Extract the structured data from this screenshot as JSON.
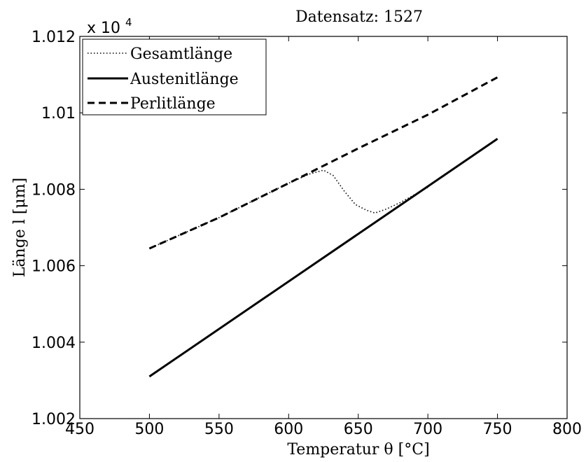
{
  "chart_data": {
    "type": "line",
    "title": "Datensatz: 1527",
    "xlabel": "Temperatur θ [°C]",
    "ylabel": "Länge l [μm]",
    "y_multiplier": "x 10",
    "y_multiplier_exponent": "4",
    "xlim": [
      450,
      800
    ],
    "ylim": [
      1.002,
      1.012
    ],
    "x_ticks": [
      450,
      500,
      550,
      600,
      650,
      700,
      750,
      800
    ],
    "y_ticks": [
      1.002,
      1.004,
      1.006,
      1.008,
      1.01,
      1.012
    ],
    "x_tick_labels": [
      "450",
      "500",
      "550",
      "600",
      "650",
      "700",
      "750",
      "800"
    ],
    "y_tick_labels": [
      "1.002",
      "1.004",
      "1.006",
      "1.008",
      "1.01",
      "1.012"
    ],
    "grid": false,
    "legend_position": "top-left",
    "series": [
      {
        "name": "Gesamtlänge",
        "style": "dotted",
        "color": "#000000",
        "x": [
          500,
          550,
          600,
          615,
          625,
          632,
          640,
          648,
          656,
          662,
          670,
          680,
          690,
          700
        ],
        "y": [
          1.00645,
          1.00726,
          1.00816,
          1.0084,
          1.0085,
          1.00836,
          1.00795,
          1.0076,
          1.00745,
          1.00738,
          1.00748,
          1.00765,
          1.00785,
          1.00805
        ]
      },
      {
        "name": "Austenitlänge",
        "style": "solid",
        "color": "#000000",
        "x": [
          500,
          750
        ],
        "y": [
          1.0031,
          1.00932
        ]
      },
      {
        "name": "Perlitlänge",
        "style": "dashed",
        "color": "#000000",
        "x": [
          500,
          550,
          600,
          650,
          700,
          750
        ],
        "y": [
          1.00645,
          1.00726,
          1.00816,
          1.00907,
          1.00995,
          1.01093
        ]
      }
    ]
  }
}
